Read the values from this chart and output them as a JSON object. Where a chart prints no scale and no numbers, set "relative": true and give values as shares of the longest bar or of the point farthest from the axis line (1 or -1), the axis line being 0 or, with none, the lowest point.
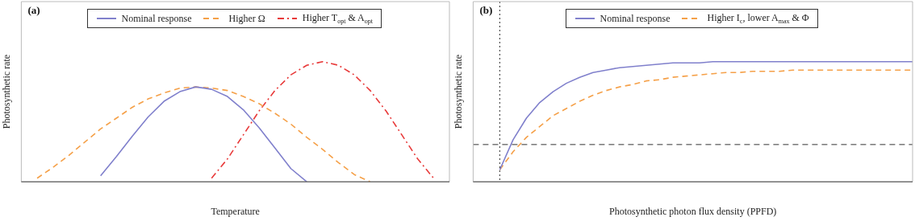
{
  "chart_data": [
    {
      "type": "line",
      "relative": true,
      "xlabel": "Temperature",
      "ylabel": "Photosynthetic rate",
      "legend": "top",
      "annotations": [
        "(a)"
      ],
      "categories": [
        null,
        null,
        null,
        null,
        null,
        null,
        null,
        null,
        null,
        null,
        null,
        null,
        null,
        null,
        null,
        null,
        null,
        null,
        null,
        null,
        null,
        null,
        null,
        null,
        null,
        null,
        null,
        null
      ],
      "series": [
        {
          "name": "Nominal response",
          "color": "#8080cc",
          "line_style": "solid",
          "values": [
            null,
            null,
            null,
            null,
            null,
            0.05,
            0.21,
            0.38,
            0.54,
            0.67,
            0.75,
            0.79,
            0.77,
            0.71,
            0.6,
            0.45,
            0.28,
            0.11,
            0,
            null,
            null,
            null,
            null,
            null,
            null,
            null,
            null,
            null
          ]
        },
        {
          "name": "Higher Ω",
          "color": "#f5a048",
          "line_style": "dashed",
          "values": [
            null,
            0.03,
            0.12,
            0.22,
            0.33,
            0.44,
            0.53,
            0.62,
            0.69,
            0.74,
            0.78,
            0.79,
            0.78,
            0.76,
            0.71,
            0.65,
            0.57,
            0.48,
            0.37,
            0.27,
            0.16,
            0.06,
            0,
            null,
            null,
            null,
            null,
            null
          ]
        },
        {
          "name": "Higher T$_{opt}$ & A$_{opt}$",
          "color": "#e83a3a",
          "line_style": "dashdot",
          "values": [
            null,
            null,
            null,
            null,
            null,
            null,
            null,
            null,
            null,
            null,
            null,
            null,
            0.03,
            0.19,
            0.39,
            0.59,
            0.76,
            0.89,
            0.97,
            1,
            0.97,
            0.89,
            0.76,
            0.59,
            0.39,
            0.19,
            0.03,
            null
          ]
        }
      ]
    },
    {
      "type": "line",
      "relative": true,
      "xlabel": "Photosynthetic photon flux density (PPFD)",
      "ylabel": "Photosynthetic rate",
      "legend": "top",
      "annotations": [
        "(b)"
      ],
      "categories": [
        null,
        null,
        null,
        null,
        null,
        null,
        null,
        null,
        null,
        null,
        null,
        null,
        null,
        null,
        null,
        null,
        null,
        null,
        null,
        null,
        null,
        null,
        null,
        null,
        null,
        null,
        null,
        null,
        null,
        null,
        null,
        null,
        null,
        null
      ],
      "ref_lines": [
        {
          "axis": "x",
          "color": "#333333",
          "line_style": "dotted"
        },
        {
          "axis": "y",
          "value": 0.31,
          "color": "#333333",
          "line_style": "dashed"
        }
      ],
      "series": [
        {
          "name": "Nominal response",
          "color": "#8080cc",
          "line_style": "solid",
          "values": [
            null,
            null,
            0.1,
            0.35,
            0.53,
            0.66,
            0.75,
            0.82,
            0.87,
            0.91,
            0.93,
            0.95,
            0.96,
            0.97,
            0.98,
            0.99,
            0.99,
            0.99,
            1,
            1,
            1,
            1,
            1,
            1,
            1,
            1,
            1,
            1,
            1,
            1,
            1,
            1,
            1,
            1
          ]
        },
        {
          "name": "Higher I$_{c}$, lower A$_{max}$ & Φ",
          "color": "#f5a048",
          "line_style": "dashed",
          "values": [
            null,
            null,
            0.1,
            0.25,
            0.37,
            0.46,
            0.55,
            0.61,
            0.67,
            0.72,
            0.76,
            0.79,
            0.81,
            0.84,
            0.85,
            0.87,
            0.88,
            0.89,
            0.9,
            0.91,
            0.91,
            0.92,
            0.92,
            0.92,
            0.93,
            0.93,
            0.93,
            0.93,
            0.93,
            0.93,
            0.93,
            0.93,
            0.93,
            0.93
          ]
        }
      ]
    }
  ]
}
